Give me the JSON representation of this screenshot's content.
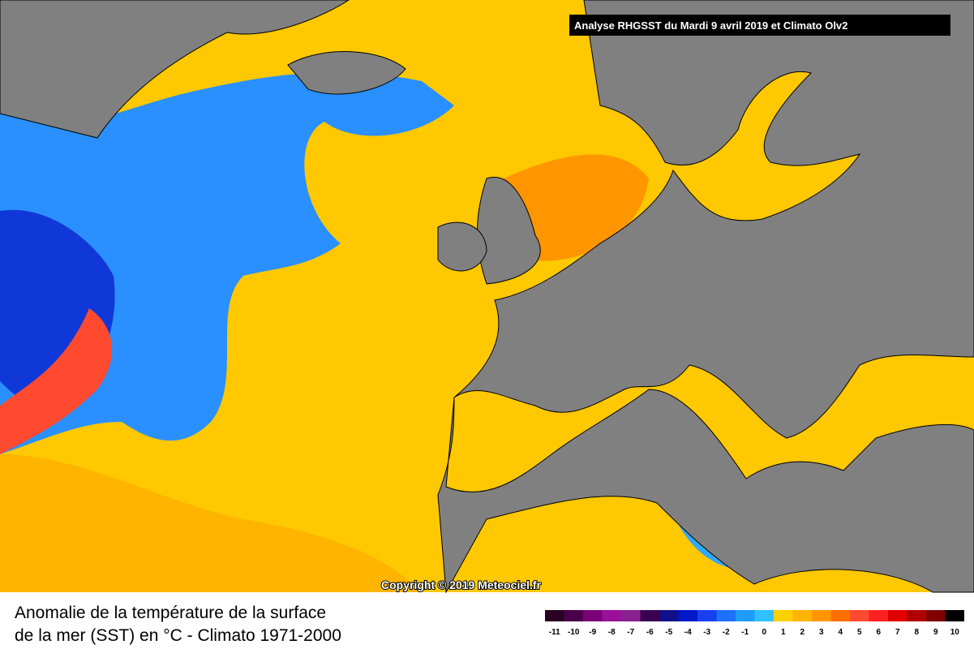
{
  "header": "Analyse RHGSST  du Mardi 9 avril 2019 et Climato Olv2",
  "copyright": "Copyright © 2019 Meteociel.fr",
  "caption": [
    "Anomalie de la température de la surface",
    "de la mer (SST) en °C - Climato 1971-2000"
  ],
  "legend": [
    {
      "value": -11,
      "color": "#2a0024"
    },
    {
      "value": -10,
      "color": "#4a0048"
    },
    {
      "value": -9,
      "color": "#7a0078"
    },
    {
      "value": -8,
      "color": "#9a109a"
    },
    {
      "value": -7,
      "color": "#8a2090"
    },
    {
      "value": -6,
      "color": "#3a0050"
    },
    {
      "value": -5,
      "color": "#10108a"
    },
    {
      "value": -4,
      "color": "#0018c8"
    },
    {
      "value": -3,
      "color": "#1840f0"
    },
    {
      "value": -2,
      "color": "#1e70ff"
    },
    {
      "value": -1,
      "color": "#1e9cff"
    },
    {
      "value": 0,
      "color": "#30c0ff"
    },
    {
      "value": 1,
      "color": "#ffd000"
    },
    {
      "value": 2,
      "color": "#ffb400"
    },
    {
      "value": 3,
      "color": "#ff9600"
    },
    {
      "value": 4,
      "color": "#ff7000"
    },
    {
      "value": 5,
      "color": "#ff4a30"
    },
    {
      "value": 6,
      "color": "#ff2020"
    },
    {
      "value": 7,
      "color": "#e00000"
    },
    {
      "value": 8,
      "color": "#b00000"
    },
    {
      "value": 9,
      "color": "#800000"
    },
    {
      "value": 10,
      "color": "#000000"
    }
  ]
}
